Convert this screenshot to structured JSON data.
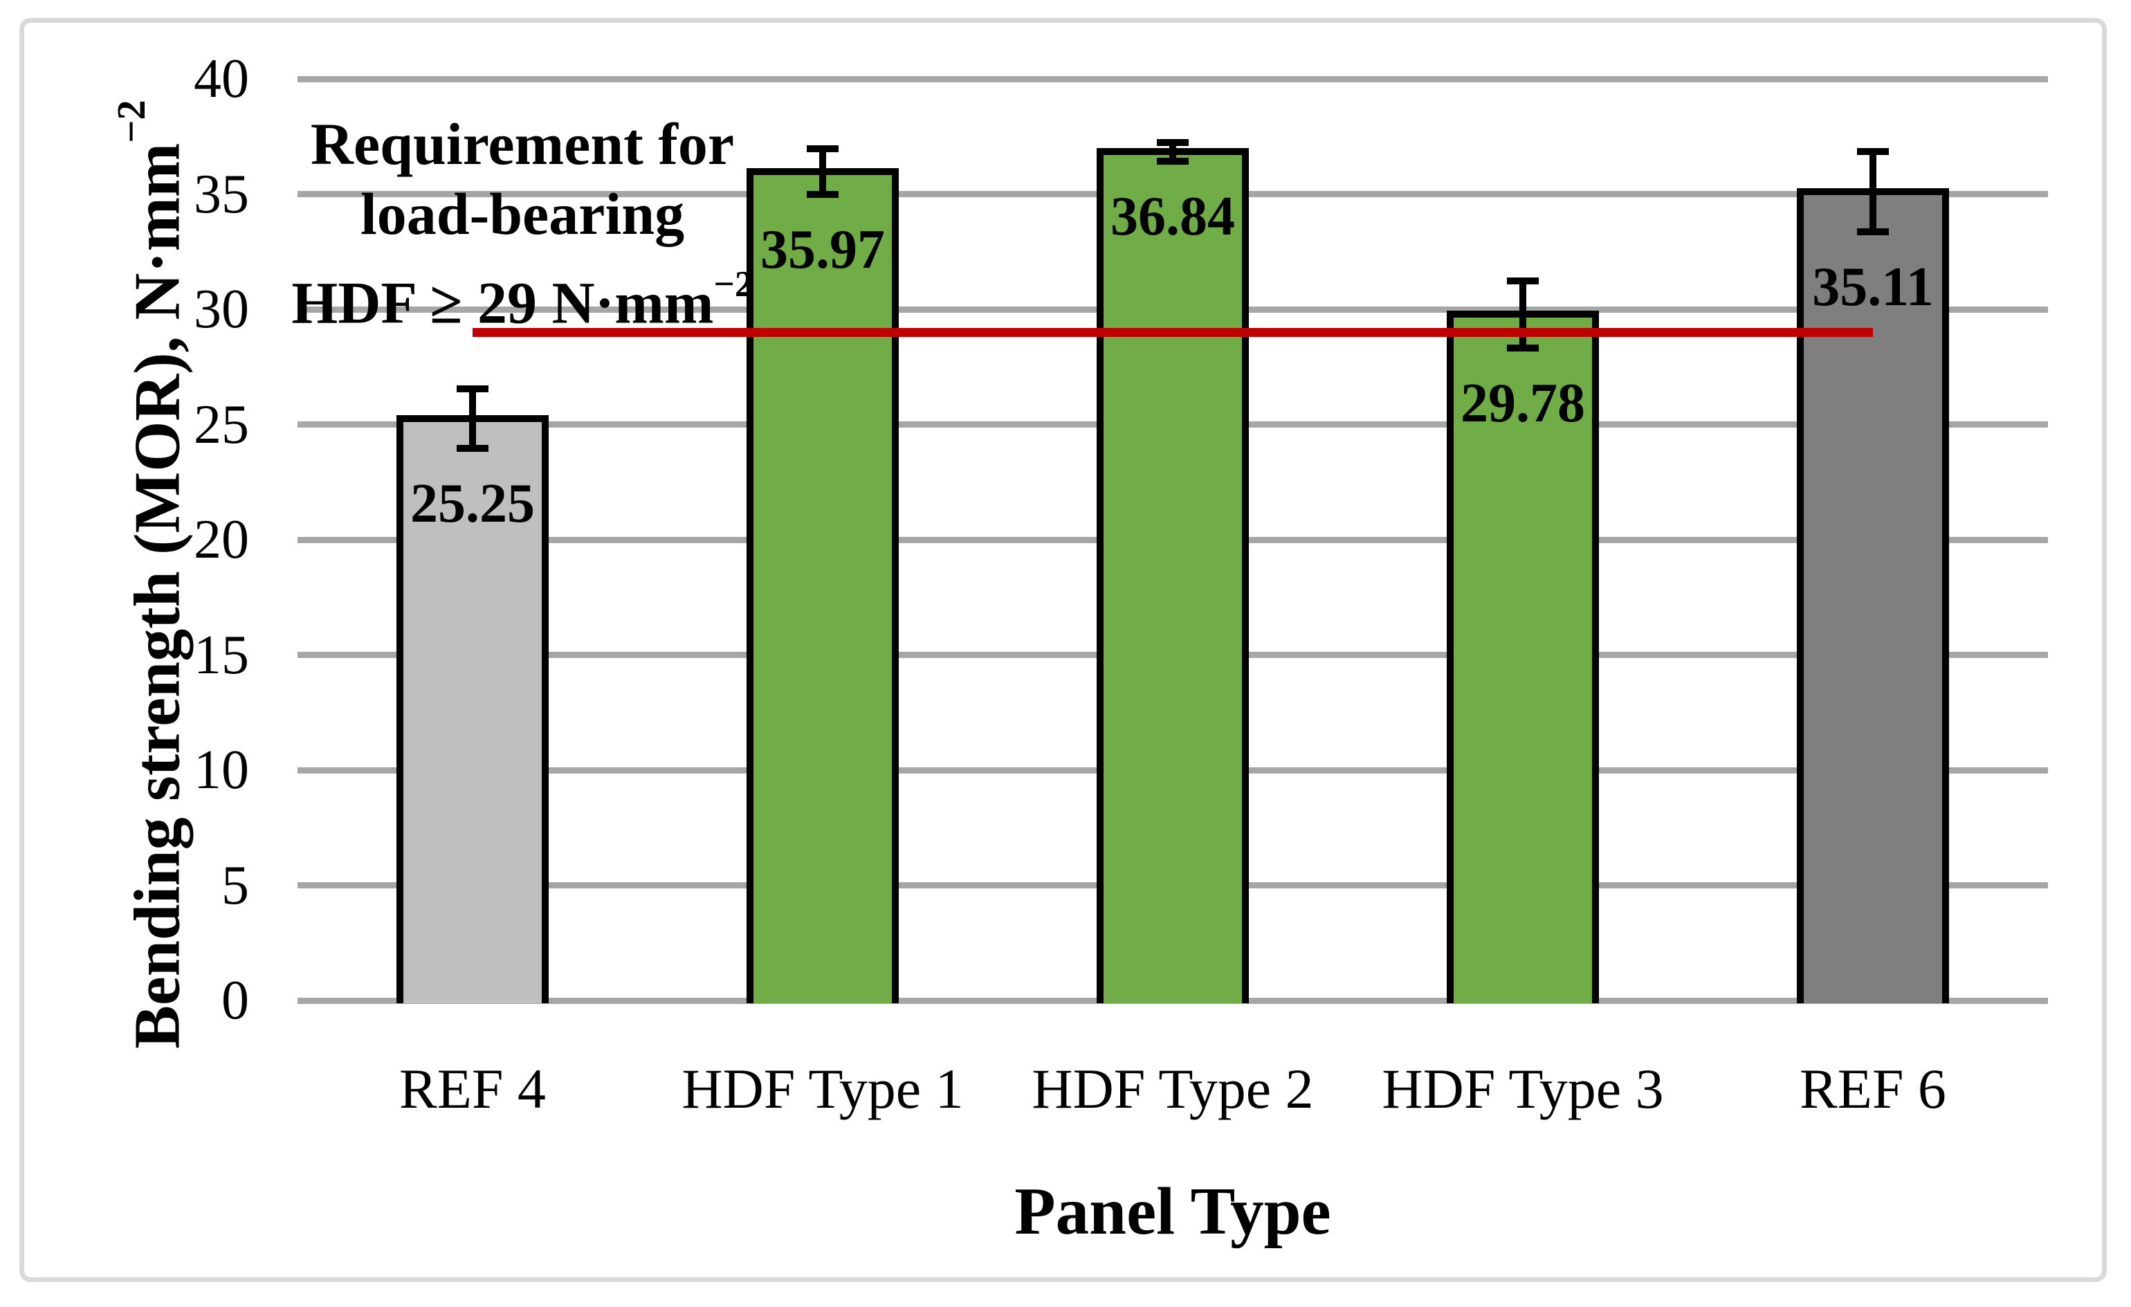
{
  "figure": {
    "y_axis": {
      "title_main": "Bending strength (MOR), N·mm",
      "title_sup": "−2",
      "ticks": [
        40,
        35,
        30,
        25,
        20,
        15,
        10,
        5,
        0
      ]
    },
    "x_axis": {
      "title": "Panel Type"
    },
    "annotation": {
      "line1": "Requirement for",
      "line2": "load-bearing",
      "line3_main": "HDF ≥ 29 N·mm",
      "line3_sup": "−2"
    }
  },
  "chart_data": {
    "type": "bar",
    "title": "",
    "xlabel": "Panel Type",
    "ylabel": "Bending strength (MOR), N·mm⁻²",
    "categories": [
      "REF 4",
      "HDF Type 1",
      "HDF Type 2",
      "HDF Type 3",
      "REF 6"
    ],
    "values": [
      25.25,
      35.97,
      36.84,
      29.78,
      35.11
    ],
    "error_bars": [
      1.3,
      1.0,
      0.4,
      1.45,
      1.75
    ],
    "data_labels": [
      "25.25",
      "35.97",
      "36.84",
      "29.78",
      "35.11"
    ],
    "bar_colors": [
      "#BFBFBF",
      "#70AD47",
      "#70AD47",
      "#70AD47",
      "#7F7F7F"
    ],
    "bar_outline_color": "#000000",
    "ylim": [
      0,
      40
    ],
    "ytick_step": 5,
    "grid": true,
    "gridline_color": "#A6A6A6",
    "legend": false,
    "threshold_line": {
      "value": 29,
      "color": "#C00000",
      "extent": "center of first bar to center of last bar",
      "label": "Requirement for load-bearing HDF ≥ 29 N·mm⁻²"
    }
  },
  "colors": {
    "frame_border": "#D9D9D9",
    "background": "#FFFFFF",
    "text": "#000000"
  }
}
